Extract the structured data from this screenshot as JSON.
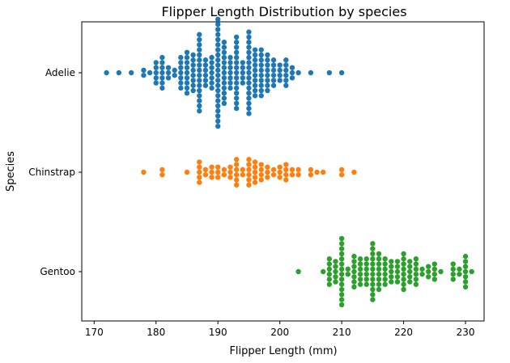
{
  "chart_data": {
    "type": "scatter",
    "subtype": "swarm",
    "title": "Flipper Length Distribution by species",
    "xlabel": "Flipper Length (mm)",
    "ylabel": "Species",
    "xlim": [
      168,
      233
    ],
    "xticks": [
      170,
      180,
      190,
      200,
      210,
      220,
      230
    ],
    "grid": false,
    "legend": "none",
    "categories": [
      "Adelie",
      "Chinstrap",
      "Gentoo"
    ],
    "series": [
      {
        "name": "Adelie",
        "color": "#1f77b4",
        "counts": [
          [
            172,
            1
          ],
          [
            174,
            1
          ],
          [
            176,
            1
          ],
          [
            178,
            2
          ],
          [
            179,
            1
          ],
          [
            180,
            5
          ],
          [
            181,
            7
          ],
          [
            182,
            3
          ],
          [
            183,
            2
          ],
          [
            184,
            7
          ],
          [
            185,
            9
          ],
          [
            186,
            8
          ],
          [
            187,
            16
          ],
          [
            188,
            6
          ],
          [
            189,
            7
          ],
          [
            190,
            22
          ],
          [
            191,
            13
          ],
          [
            192,
            7
          ],
          [
            193,
            15
          ],
          [
            194,
            5
          ],
          [
            195,
            17
          ],
          [
            196,
            10
          ],
          [
            197,
            10
          ],
          [
            198,
            8
          ],
          [
            199,
            6
          ],
          [
            200,
            4
          ],
          [
            201,
            6
          ],
          [
            202,
            3
          ],
          [
            203,
            1
          ],
          [
            205,
            1
          ],
          [
            208,
            1
          ],
          [
            210,
            1
          ]
        ]
      },
      {
        "name": "Chinstrap",
        "color": "#ff7f0e",
        "counts": [
          [
            178,
            1
          ],
          [
            181,
            2
          ],
          [
            185,
            1
          ],
          [
            187,
            5
          ],
          [
            188,
            2
          ],
          [
            189,
            3
          ],
          [
            190,
            3
          ],
          [
            191,
            2
          ],
          [
            192,
            3
          ],
          [
            193,
            6
          ],
          [
            194,
            2
          ],
          [
            195,
            6
          ],
          [
            196,
            5
          ],
          [
            197,
            4
          ],
          [
            198,
            3
          ],
          [
            199,
            2
          ],
          [
            200,
            3
          ],
          [
            201,
            4
          ],
          [
            202,
            2
          ],
          [
            203,
            2
          ],
          [
            205,
            2
          ],
          [
            206,
            1
          ],
          [
            207,
            1
          ],
          [
            210,
            2
          ],
          [
            212,
            1
          ]
        ]
      },
      {
        "name": "Gentoo",
        "color": "#2ca02c",
        "counts": [
          [
            203,
            1
          ],
          [
            207,
            1
          ],
          [
            208,
            6
          ],
          [
            209,
            5
          ],
          [
            210,
            14
          ],
          [
            211,
            2
          ],
          [
            212,
            7
          ],
          [
            213,
            6
          ],
          [
            214,
            6
          ],
          [
            215,
            12
          ],
          [
            216,
            8
          ],
          [
            217,
            6
          ],
          [
            218,
            5
          ],
          [
            219,
            5
          ],
          [
            220,
            8
          ],
          [
            221,
            5
          ],
          [
            222,
            6
          ],
          [
            223,
            2
          ],
          [
            224,
            3
          ],
          [
            225,
            4
          ],
          [
            226,
            1
          ],
          [
            228,
            4
          ],
          [
            229,
            2
          ],
          [
            230,
            7
          ],
          [
            231,
            1
          ]
        ]
      }
    ]
  }
}
